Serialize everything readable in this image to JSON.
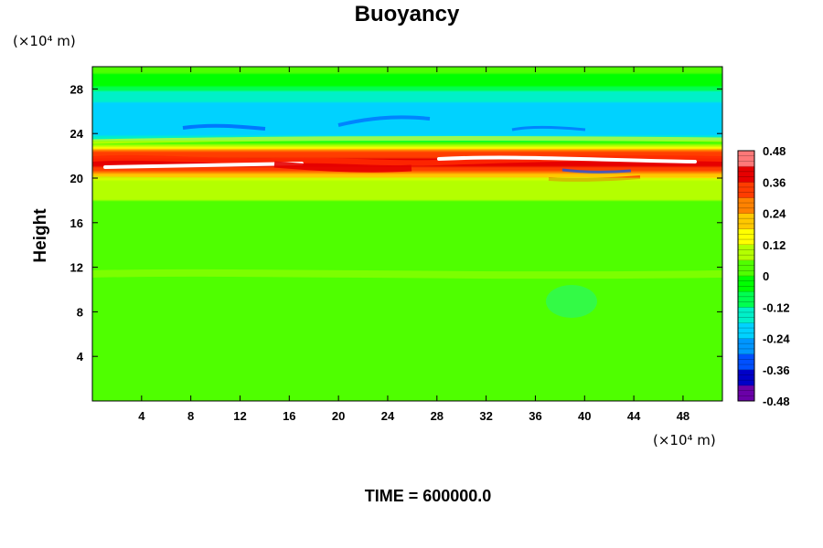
{
  "chart_data": {
    "type": "heatmap",
    "title": "Buoyancy",
    "ylabel": "Height",
    "xlabel": "",
    "x_unit_label": "(×10⁴ m)",
    "y_unit_label": "(×10⁴ m)",
    "footer": "TIME = 600000.0",
    "x_range": [
      0,
      51.2
    ],
    "y_range": [
      0,
      30
    ],
    "x_ticks": [
      4,
      8,
      12,
      16,
      20,
      24,
      28,
      32,
      36,
      40,
      44,
      48
    ],
    "y_ticks": [
      4,
      8,
      12,
      16,
      20,
      24,
      28
    ],
    "colorbar": {
      "range": [
        -0.48,
        0.48
      ],
      "ticks": [
        0.48,
        0.36,
        0.24,
        0.12,
        0,
        -0.12,
        -0.24,
        -0.36,
        -0.48
      ],
      "colors": [
        "#6a00a8",
        "#0000c8",
        "#0050ff",
        "#0096ff",
        "#00d2ff",
        "#00f0c8",
        "#00ff50",
        "#00ff00",
        "#50ff00",
        "#b4ff00",
        "#ffff00",
        "#ffc800",
        "#ff8200",
        "#ff3c00",
        "#e60000",
        "#ff7878"
      ]
    },
    "layers": [
      {
        "height": 30.0,
        "value": 0.02
      },
      {
        "height": 28.5,
        "value": -0.03
      },
      {
        "height": 27.6,
        "value": -0.14
      },
      {
        "height": 26.5,
        "value": -0.2
      },
      {
        "height": 24.5,
        "value": -0.24
      },
      {
        "height": 23.6,
        "value": -0.16
      },
      {
        "height": 23.0,
        "value": 0.06
      },
      {
        "height": 22.4,
        "value": 0.3
      },
      {
        "height": 21.2,
        "value": 0.42
      },
      {
        "height": 20.4,
        "value": 0.24
      },
      {
        "height": 19.5,
        "value": 0.08
      },
      {
        "height": 16.0,
        "value": 0.03
      },
      {
        "height": 11.0,
        "value": 0.06
      },
      {
        "height": 9.0,
        "value": 0.0
      },
      {
        "height": 0.0,
        "value": 0.0
      }
    ]
  }
}
